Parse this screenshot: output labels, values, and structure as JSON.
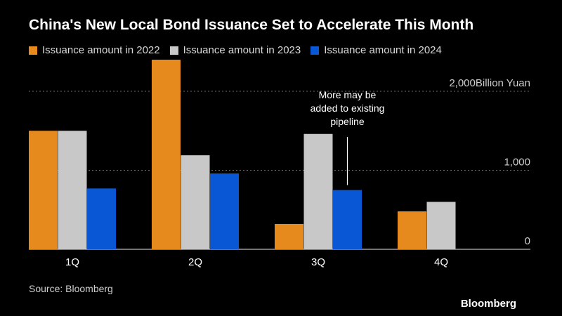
{
  "chart_data": {
    "type": "bar",
    "title": "China's New Local Bond Issuance Set to Accelerate This Month",
    "categories": [
      "1Q",
      "2Q",
      "3Q",
      "4Q"
    ],
    "series": [
      {
        "name": "Issuance amount in 2022",
        "color": "#e68a1e",
        "values": [
          1500,
          2400,
          320,
          480
        ]
      },
      {
        "name": "Issuance amount in 2023",
        "color": "#c8c8c8",
        "values": [
          1500,
          1190,
          1460,
          600
        ]
      },
      {
        "name": "Issuance amount in 2024",
        "color": "#0a57d6",
        "values": [
          770,
          960,
          750,
          null
        ]
      }
    ],
    "ylim": [
      0,
      2400
    ],
    "yticks": [
      {
        "value": 0,
        "label": "0"
      },
      {
        "value": 1000,
        "label": "1,000"
      },
      {
        "value": 2000,
        "label": "2,000Billion Yuan"
      }
    ],
    "grid": true,
    "legend_position": "top-left",
    "annotation": {
      "lines": [
        "More may be",
        "added to existing",
        "pipeline"
      ],
      "category": "3Q",
      "series_index": 2
    }
  },
  "source": "Source: Bloomberg",
  "brand": "Bloomberg"
}
